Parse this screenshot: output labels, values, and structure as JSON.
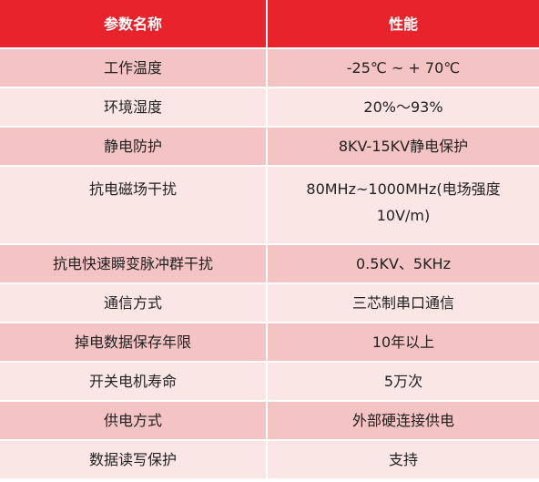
{
  "header": {
    "col1": "参数名称",
    "col2": "性能"
  },
  "rows": [
    {
      "name": "工作温度",
      "value": "-25℃ ~ + 70℃"
    },
    {
      "name": "环境湿度",
      "value": "20%～93%"
    },
    {
      "name": "静电防护",
      "value": "8KV-15KV静电保护"
    },
    {
      "name": "抗电磁场干扰",
      "value": "80MHz~1000MHz(电场强度10V/m)"
    },
    {
      "name": "抗电快速瞬变脉冲群干扰",
      "value": "0.5KV、5KHz"
    },
    {
      "name": "通信方式",
      "value": "三芯制串口通信"
    },
    {
      "name": "掉电数据保存年限",
      "value": "10年以上"
    },
    {
      "name": "开关电机寿命",
      "value": "5万次"
    },
    {
      "name": "供电方式",
      "value": "外部硬连接供电"
    },
    {
      "name": "数据读写保护",
      "value": "支持"
    }
  ],
  "colors": {
    "header": "#e8232c",
    "row_pink": "#f4c3c4",
    "row_light": "#fbe6e6"
  }
}
